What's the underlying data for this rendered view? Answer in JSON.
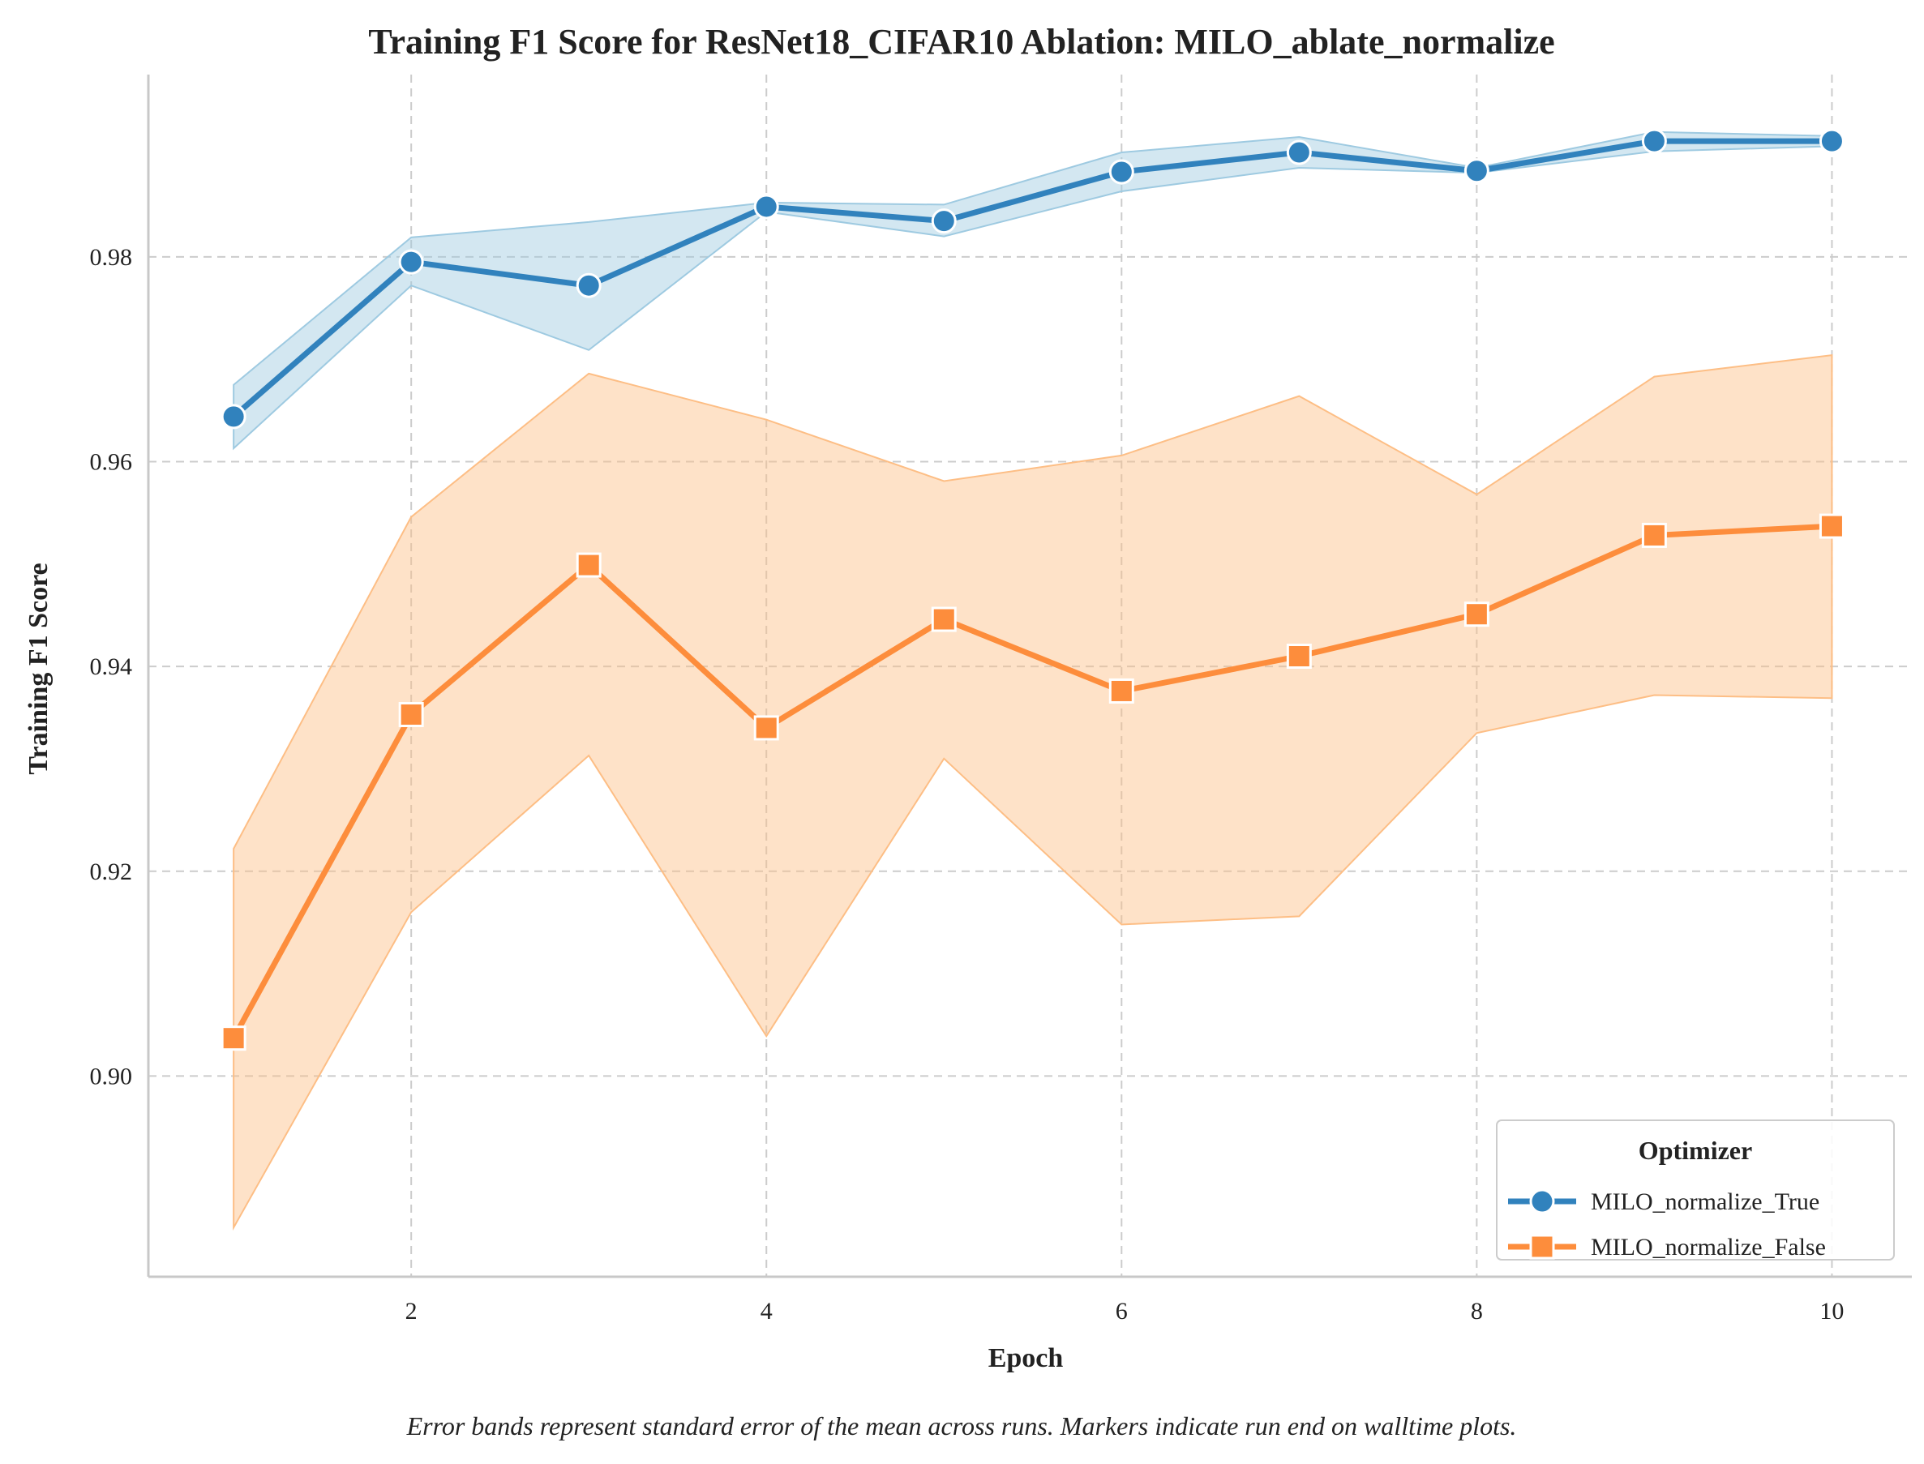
{
  "chart_data": {
    "type": "line",
    "title": "Training F1 Score for ResNet18_CIFAR10 Ablation: MILO_ablate_normalize",
    "xlabel": "Epoch",
    "ylabel": "Training F1 Score",
    "caption": "Error bands represent standard error of the mean across runs. Markers indicate run end on walltime plots.",
    "xlim": [
      0.52,
      10.45
    ],
    "ylim": [
      0.8804,
      0.9978
    ],
    "xticks": [
      2,
      4,
      6,
      8,
      10
    ],
    "xtick_labels": [
      "2",
      "4",
      "6",
      "8",
      "10"
    ],
    "yticks": [
      0.9,
      0.92,
      0.94,
      0.96,
      0.98
    ],
    "ytick_labels": [
      "0.90",
      "0.92",
      "0.94",
      "0.96",
      "0.98"
    ],
    "grid": true,
    "legend": {
      "title": "Optimizer",
      "placement": "lower-right"
    },
    "x": [
      1,
      2,
      3,
      4,
      5,
      6,
      7,
      8,
      9,
      10
    ],
    "series": [
      {
        "name": "MILO_normalize_True",
        "color": "#3182bd",
        "band_color": "#9ecae1",
        "marker": "circle",
        "values": [
          0.9644,
          0.9795,
          0.9772,
          0.9849,
          0.9835,
          0.9883,
          0.9902,
          0.9884,
          0.9913,
          0.9913
        ],
        "lower": [
          0.9613,
          0.9772,
          0.9709,
          0.9844,
          0.982,
          0.9864,
          0.9887,
          0.9882,
          0.9903,
          0.9908
        ],
        "upper": [
          0.9675,
          0.9819,
          0.9834,
          0.9853,
          0.9851,
          0.9902,
          0.9917,
          0.9887,
          0.9922,
          0.9918
        ]
      },
      {
        "name": "MILO_normalize_False",
        "color": "#fd8d3c",
        "band_color": "#fdbe85",
        "marker": "square",
        "values": [
          0.9037,
          0.9353,
          0.9499,
          0.934,
          0.9446,
          0.9376,
          0.941,
          0.9451,
          0.9528,
          0.9537
        ],
        "lower": [
          0.8852,
          0.916,
          0.9313,
          0.9039,
          0.931,
          0.9148,
          0.9156,
          0.9335,
          0.9372,
          0.9369
        ],
        "upper": [
          0.9222,
          0.9546,
          0.9686,
          0.9641,
          0.9581,
          0.9606,
          0.9664,
          0.9568,
          0.9683,
          0.9704
        ]
      }
    ]
  }
}
